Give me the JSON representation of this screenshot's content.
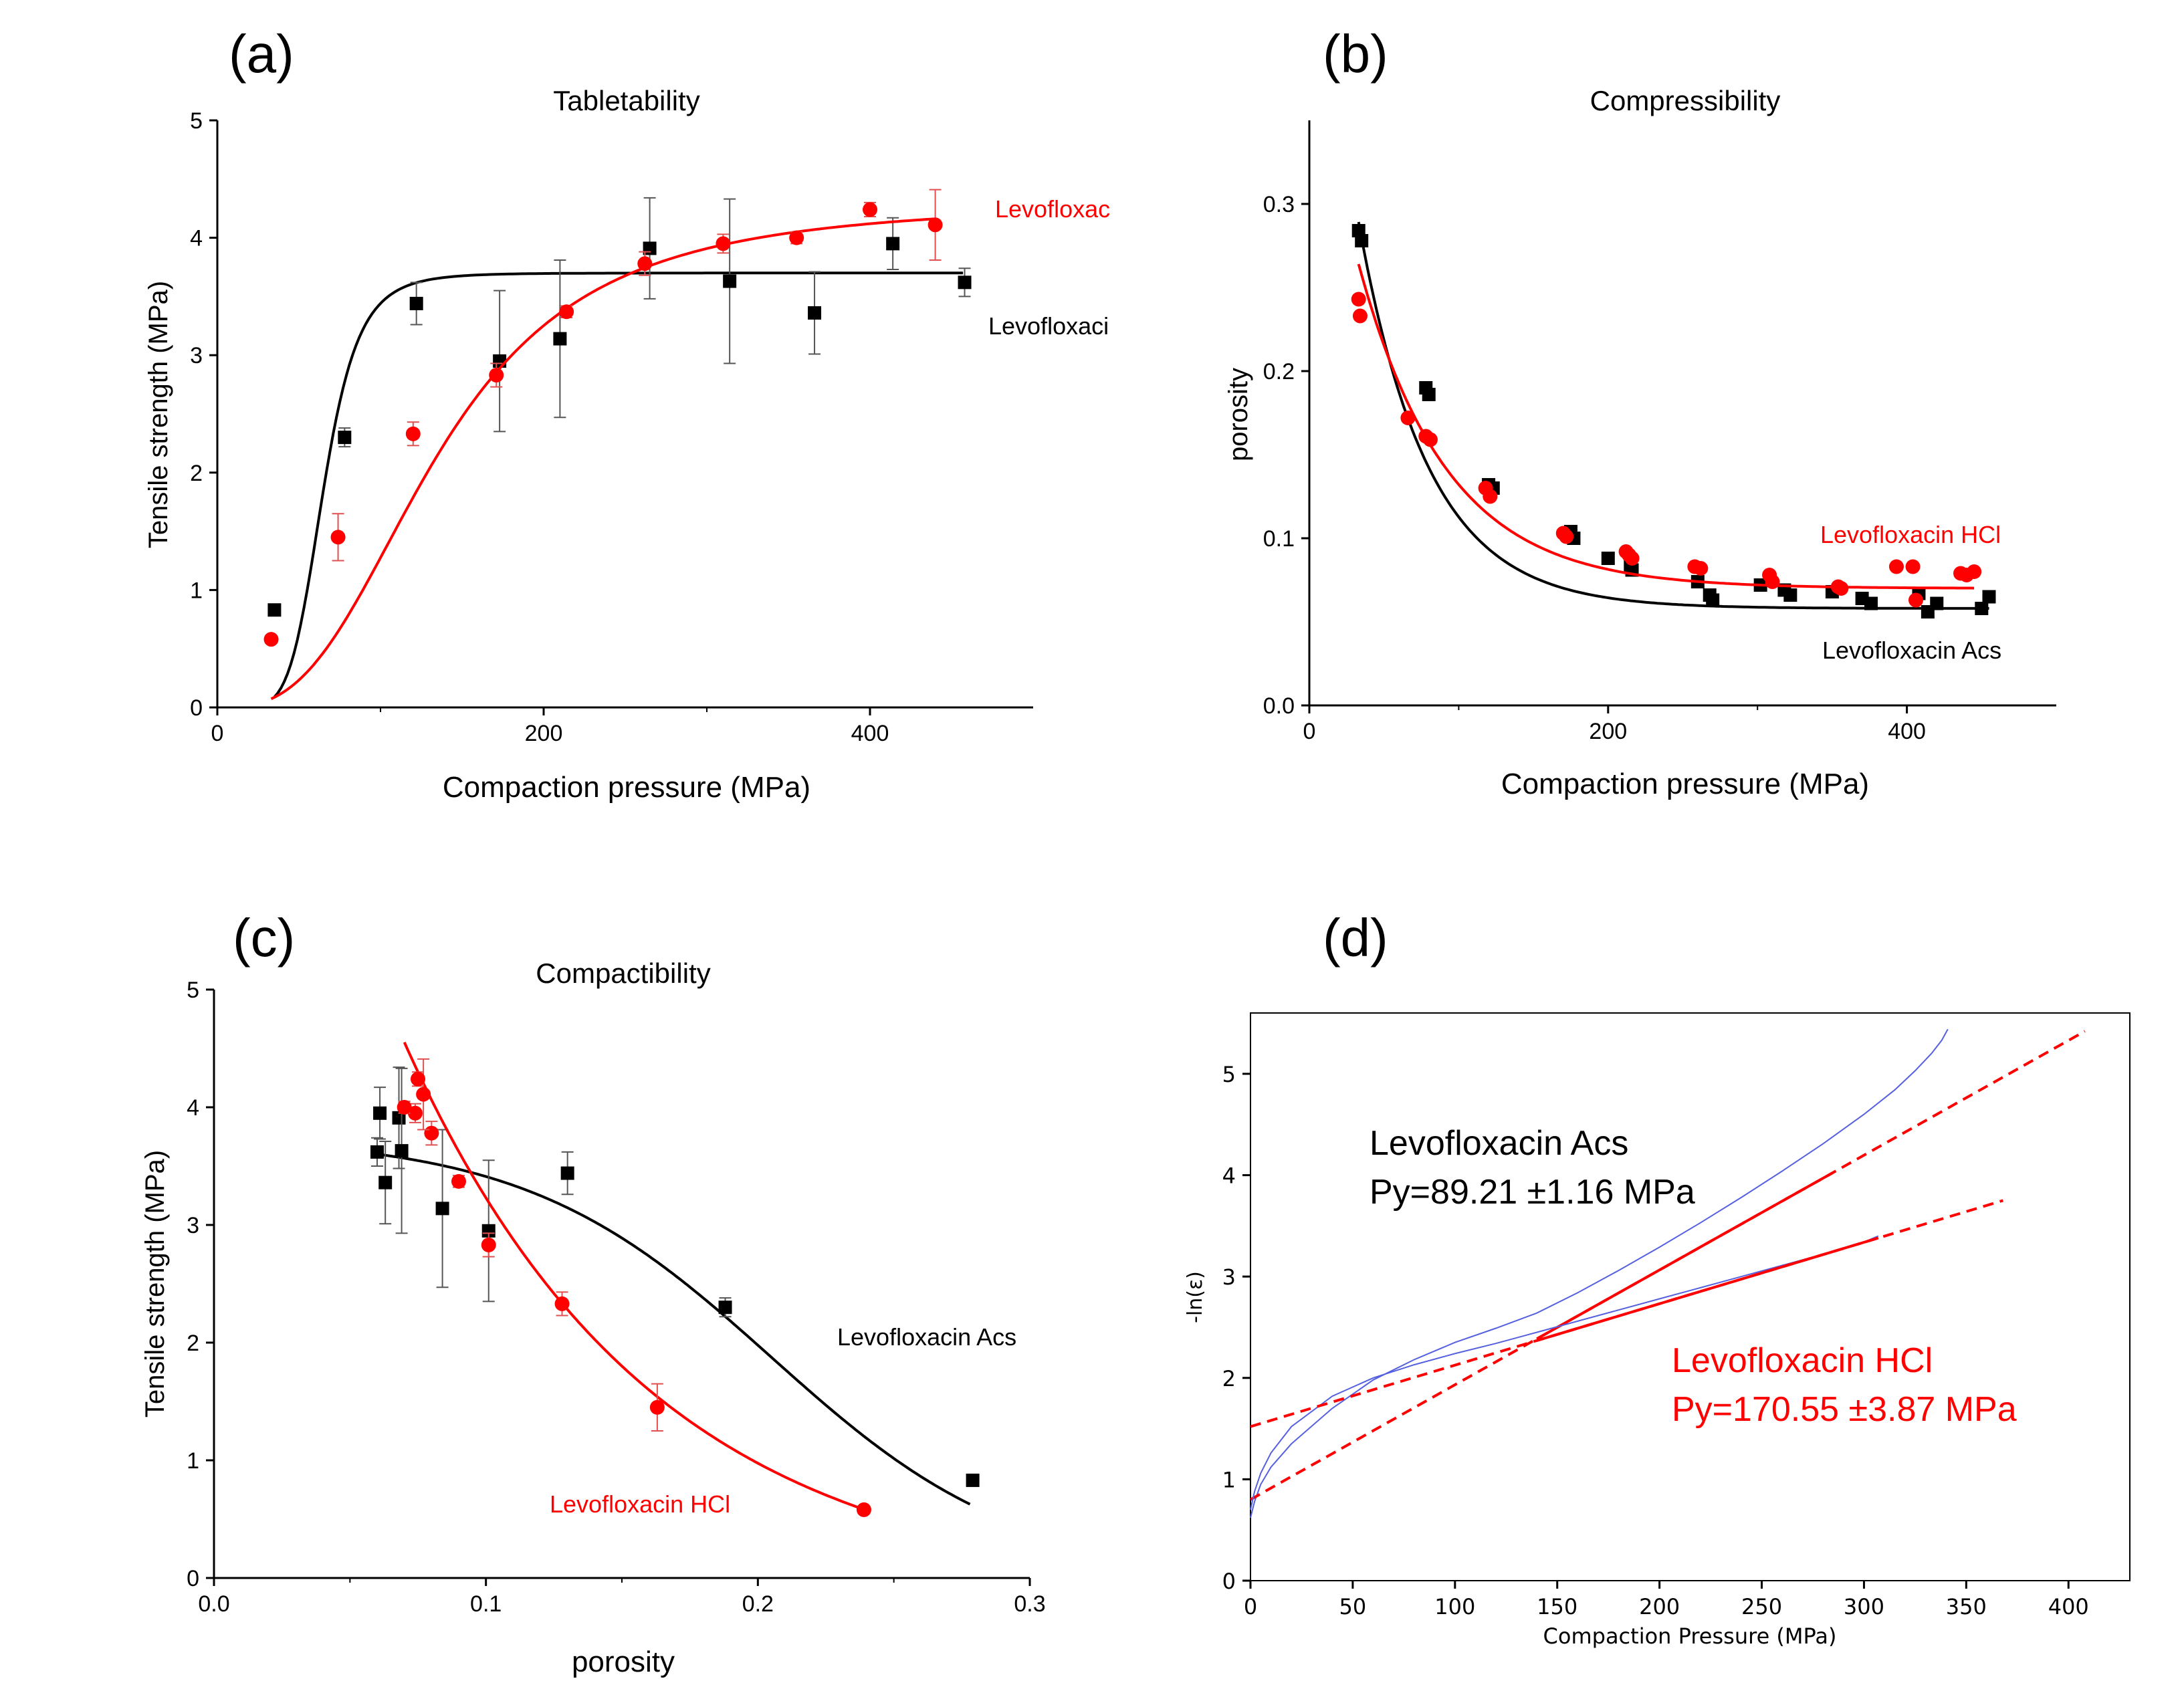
{
  "figure": {
    "panels": [
      "(a)",
      "(b)",
      "(c)",
      "(d)"
    ]
  },
  "chart_data": [
    {
      "panel": "(a)",
      "type": "scatter",
      "title": "Tabletability",
      "xlabel": "Compaction pressure (MPa)",
      "ylabel": "Tensile strength (MPa)",
      "xlim": [
        0,
        500
      ],
      "ylim": [
        0,
        5
      ],
      "xticks": [
        0,
        200,
        400
      ],
      "yticks": [
        0,
        1,
        2,
        3,
        4,
        5
      ],
      "grid": false,
      "series": [
        {
          "name": "Levofloxaci",
          "color": "#000000",
          "marker": "square",
          "x": [
            35,
            78,
            122,
            173,
            210,
            265,
            314,
            366,
            414,
            458
          ],
          "y": [
            0.83,
            2.3,
            3.44,
            2.95,
            3.14,
            3.91,
            3.63,
            3.36,
            3.95,
            3.62
          ],
          "err": [
            0.05,
            0.08,
            0.18,
            0.6,
            0.67,
            0.43,
            0.7,
            0.35,
            0.22,
            0.12
          ],
          "fit": {
            "kind": "sigmoid",
            "top": 3.7,
            "bottom": 0.0,
            "x50": 65,
            "k": 1.5
          }
        },
        {
          "name": "Levofloxac",
          "color": "#ff0000",
          "marker": "circle",
          "x": [
            33,
            74,
            120,
            171,
            214,
            262,
            310,
            355,
            400,
            440
          ],
          "y": [
            0.58,
            1.45,
            2.33,
            2.83,
            3.37,
            3.78,
            3.95,
            4.0,
            4.24,
            4.11
          ],
          "err": [
            0.03,
            0.2,
            0.1,
            0.1,
            0.05,
            0.1,
            0.08,
            0.05,
            0.06,
            0.3
          ],
          "fit": {
            "kind": "sigmoid",
            "top": 4.3,
            "bottom": 0.0,
            "x50": 135,
            "k": 0.72
          }
        }
      ]
    },
    {
      "panel": "(b)",
      "type": "scatter",
      "title": "Compressibility",
      "xlabel": "Compaction pressure (MPa)",
      "ylabel": "porosity",
      "xlim": [
        0,
        500
      ],
      "ylim": [
        0.0,
        0.35
      ],
      "xticks": [
        0,
        200,
        400
      ],
      "yticks": [
        0.0,
        0.1,
        0.2,
        0.3
      ],
      "grid": false,
      "series": [
        {
          "name": "Levofloxacin Acs",
          "color": "#000000",
          "marker": "square",
          "x": [
            33,
            35,
            78,
            80,
            120,
            123,
            175,
            177,
            200,
            215,
            216,
            260,
            268,
            270,
            302,
            318,
            322,
            350,
            370,
            376,
            408,
            414,
            420,
            450,
            455
          ],
          "y": [
            0.284,
            0.278,
            0.19,
            0.186,
            0.132,
            0.13,
            0.104,
            0.1,
            0.088,
            0.083,
            0.081,
            0.074,
            0.066,
            0.063,
            0.072,
            0.069,
            0.066,
            0.068,
            0.064,
            0.061,
            0.067,
            0.056,
            0.061,
            0.058,
            0.065
          ],
          "fit": {
            "kind": "exp",
            "a": 0.47,
            "k": 0.0215,
            "c": 0.058
          }
        },
        {
          "name": "Levofloxacin HCl",
          "color": "#ff0000",
          "marker": "circle",
          "x": [
            33,
            34,
            66,
            78,
            81,
            118,
            121,
            170,
            172,
            212,
            214,
            216,
            258,
            262,
            308,
            310,
            354,
            356,
            393,
            404,
            406,
            436,
            440,
            445
          ],
          "y": [
            0.243,
            0.233,
            0.172,
            0.161,
            0.159,
            0.13,
            0.125,
            0.103,
            0.101,
            0.092,
            0.09,
            0.088,
            0.083,
            0.082,
            0.078,
            0.074,
            0.071,
            0.07,
            0.083,
            0.083,
            0.063,
            0.079,
            0.078,
            0.08
          ],
          "fit": {
            "kind": "exp",
            "a": 0.34,
            "k": 0.017,
            "c": 0.07
          }
        }
      ]
    },
    {
      "panel": "(c)",
      "type": "scatter",
      "title": "Compactibility",
      "xlabel": "porosity",
      "ylabel": "Tensile strength (MPa)",
      "xlim": [
        0.0,
        0.3
      ],
      "ylim": [
        0,
        5
      ],
      "xticks": [
        0.0,
        0.1,
        0.2,
        0.3
      ],
      "yticks": [
        0,
        1,
        2,
        3,
        4,
        5
      ],
      "grid": false,
      "series": [
        {
          "name": "Levofloxacin Acs",
          "color": "#000000",
          "marker": "square",
          "x": [
            0.279,
            0.188,
            0.13,
            0.101,
            0.084,
            0.068,
            0.063,
            0.06,
            0.061,
            0.069
          ],
          "y": [
            0.83,
            2.3,
            3.44,
            2.95,
            3.14,
            3.91,
            3.36,
            3.62,
            3.95,
            3.63
          ],
          "err": [
            0.03,
            0.08,
            0.18,
            0.6,
            0.67,
            0.43,
            0.35,
            0.12,
            0.22,
            0.7
          ],
          "fit": {
            "kind": "sigmoid-desc",
            "top": 3.75,
            "x50": 0.205,
            "k": 22
          }
        },
        {
          "name": "Levofloxacin HCl",
          "color": "#ff0000",
          "marker": "circle",
          "x": [
            0.239,
            0.163,
            0.128,
            0.101,
            0.09,
            0.08,
            0.074,
            0.07,
            0.077,
            0.075
          ],
          "y": [
            0.58,
            1.45,
            2.33,
            2.83,
            3.37,
            3.78,
            3.95,
            4.0,
            4.11,
            4.24
          ],
          "err": [
            0.03,
            0.2,
            0.1,
            0.1,
            0.05,
            0.1,
            0.08,
            0.05,
            0.3,
            0.06
          ],
          "fit": {
            "kind": "exp-desc",
            "a": 4.6,
            "k": 11.0,
            "x0": 0.072,
            "c": -0.15,
            "from": 0.07,
            "to": 0.239
          }
        }
      ]
    },
    {
      "panel": "(d)",
      "type": "line",
      "title": "",
      "xlabel": "Compaction Pressure (MPa)",
      "ylabel": "-ln(ε)",
      "xlim": [
        0,
        430
      ],
      "ylim": [
        0,
        5.6
      ],
      "xticks": [
        0,
        50,
        100,
        150,
        200,
        250,
        300,
        350,
        400
      ],
      "yticks": [
        0,
        1,
        2,
        3,
        4,
        5
      ],
      "grid": false,
      "series": [
        {
          "name": "Levofloxacin Acs",
          "color": "#ff0000",
          "style": "dashed",
          "Py": "Py=89.21 ±1.16 MPa",
          "line": {
            "x0": 0,
            "y0": 0.8,
            "x1": 408,
            "y1": 5.42,
            "solid_from": 140,
            "solid_to": 285
          },
          "curve": {
            "color": "#5560e0",
            "x": [
              0,
              2,
              5,
              10,
              20,
              40,
              60,
              80,
              100,
              120,
              140,
              160,
              180,
              200,
              220,
              240,
              260,
              280,
              300,
              315,
              325,
              333,
              338,
              341
            ],
            "y": [
              0.62,
              0.78,
              0.95,
              1.12,
              1.35,
              1.7,
              1.98,
              2.18,
              2.35,
              2.49,
              2.64,
              2.84,
              3.06,
              3.29,
              3.53,
              3.78,
              4.04,
              4.31,
              4.6,
              4.84,
              5.03,
              5.2,
              5.33,
              5.44
            ]
          }
        },
        {
          "name": "Levofloxacin HCl",
          "color": "#ff0000",
          "style": "dashed",
          "Py": "Py=170.55  ±3.87 MPa",
          "line": {
            "x0": 0,
            "y0": 1.52,
            "x1": 368,
            "y1": 3.75,
            "solid_from": 140,
            "solid_to": 307
          },
          "curve": {
            "color": "#5560e0",
            "x": [
              0,
              2,
              5,
              10,
              20,
              40,
              60,
              80,
              100,
              120,
              140,
              160,
              180,
              200,
              220,
              240,
              260,
              280,
              300,
              307
            ],
            "y": [
              0.7,
              0.88,
              1.06,
              1.26,
              1.52,
              1.82,
              2.0,
              2.13,
              2.24,
              2.34,
              2.45,
              2.56,
              2.67,
              2.78,
              2.89,
              3.0,
              3.11,
              3.22,
              3.34,
              3.4
            ]
          }
        }
      ]
    }
  ]
}
